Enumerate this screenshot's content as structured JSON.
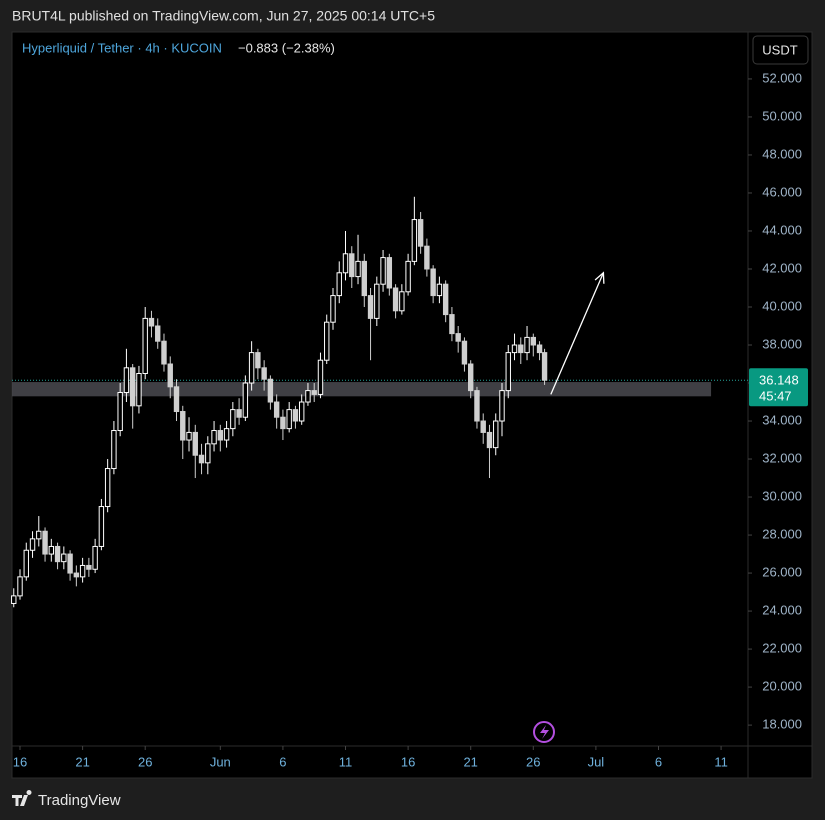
{
  "header": "BRUT4L published on TradingView.com, Jun 27, 2025 00:14 UTC+5",
  "footer": "TradingView",
  "chart_data": {
    "type": "candlestick",
    "symbol": "Hyperliquid / Tether · 4h · KUCOIN",
    "change_label": "−0.883 (−2.38%)",
    "currency": "USDT",
    "countdown": "45:47",
    "up_color": "#ffffff",
    "down_color": "#cfcfcf",
    "xlim": [
      15.36,
      74.15
    ],
    "xticks": [
      {
        "value": 16,
        "label": "16"
      },
      {
        "value": 21,
        "label": "21"
      },
      {
        "value": 26,
        "label": "26"
      },
      {
        "value": 32,
        "label": "Jun"
      },
      {
        "value": 37,
        "label": "6"
      },
      {
        "value": 42,
        "label": "11"
      },
      {
        "value": 47,
        "label": "16"
      },
      {
        "value": 52,
        "label": "21"
      },
      {
        "value": 57,
        "label": "26"
      },
      {
        "value": 62,
        "label": "Jul"
      },
      {
        "value": 67,
        "label": "6"
      },
      {
        "value": 72,
        "label": "11"
      }
    ],
    "ylim": [
      16.9,
      54.47
    ],
    "yticks": [
      {
        "value": 18,
        "label": "18.000"
      },
      {
        "value": 20,
        "label": "20.000"
      },
      {
        "value": 22,
        "label": "22.000"
      },
      {
        "value": 24,
        "label": "24.000"
      },
      {
        "value": 26,
        "label": "26.000"
      },
      {
        "value": 28,
        "label": "28.000"
      },
      {
        "value": 30,
        "label": "30.000"
      },
      {
        "value": 32,
        "label": "32.000"
      },
      {
        "value": 34,
        "label": "34.000"
      },
      {
        "value": 36,
        "label": "36.000"
      },
      {
        "value": 38,
        "label": "38.000"
      },
      {
        "value": 40,
        "label": "40.000"
      },
      {
        "value": 42,
        "label": "42.000"
      },
      {
        "value": 44,
        "label": "44.000"
      },
      {
        "value": 46,
        "label": "46.000"
      },
      {
        "value": 48,
        "label": "48.000"
      },
      {
        "value": 50,
        "label": "50.000"
      },
      {
        "value": 52,
        "label": "52.000"
      }
    ],
    "x": [
      15.5,
      16,
      16.5,
      17,
      17.5,
      18,
      18.5,
      19,
      19.5,
      20,
      20.5,
      21,
      21.5,
      22,
      22.5,
      23,
      23.5,
      24,
      24.5,
      25,
      25.5,
      26,
      26.5,
      27,
      27.5,
      28,
      28.5,
      29,
      29.5,
      30,
      30.5,
      31,
      31.5,
      32,
      32.5,
      33,
      33.5,
      34,
      34.5,
      35,
      35.5,
      36,
      36.5,
      37,
      37.5,
      38,
      38.5,
      39,
      39.5,
      40,
      40.5,
      41,
      41.5,
      42,
      42.5,
      43,
      43.5,
      44,
      44.5,
      45,
      45.5,
      46,
      46.5,
      47,
      47.5,
      48,
      48.5,
      49,
      49.5,
      50,
      50.5,
      51,
      51.5,
      52,
      52.5,
      53,
      53.5,
      54,
      54.5,
      55,
      55.5,
      56,
      56.5,
      57,
      57.5,
      57.9
    ],
    "open": [
      24.4,
      24.8,
      25.8,
      27.2,
      27.8,
      28.2,
      27.0,
      27.4,
      26.6,
      27.0,
      26.0,
      25.8,
      26.4,
      26.2,
      27.4,
      29.5,
      31.5,
      33.5,
      35.5,
      36.8,
      34.8,
      36.5,
      39.4,
      39.0,
      38.2,
      37.0,
      35.8,
      34.5,
      33.0,
      33.4,
      32.2,
      31.8,
      32.8,
      33.5,
      33.0,
      33.6,
      34.6,
      34.2,
      36.0,
      37.6,
      36.8,
      36.2,
      35.0,
      34.2,
      33.6,
      34.6,
      34.0,
      35.0,
      35.6,
      35.4,
      37.2,
      39.2,
      40.6,
      41.8,
      42.8,
      41.6,
      42.4,
      40.6,
      39.4,
      41.2,
      42.6,
      41.0,
      39.8,
      40.8,
      42.4,
      44.6,
      43.2,
      42.0,
      40.6,
      41.2,
      39.6,
      38.6,
      38.2,
      37.0,
      35.6,
      34.0,
      33.4,
      32.6,
      34.0,
      35.6,
      37.6,
      38.0,
      37.6,
      38.4,
      38.0,
      37.6
    ],
    "high": [
      25.2,
      26.2,
      27.6,
      28.2,
      29.0,
      28.4,
      27.8,
      27.6,
      27.4,
      27.2,
      26.4,
      26.8,
      26.8,
      27.8,
      29.9,
      32.0,
      34.0,
      36.0,
      37.8,
      37.0,
      36.9,
      40.0,
      39.8,
      39.4,
      38.6,
      37.4,
      36.2,
      34.8,
      34.2,
      33.8,
      32.8,
      33.2,
      34.0,
      33.8,
      34.0,
      35.0,
      35.2,
      36.4,
      38.2,
      37.8,
      37.2,
      36.4,
      35.4,
      34.6,
      35.0,
      34.8,
      35.4,
      36.0,
      36.0,
      37.6,
      39.6,
      41.0,
      42.4,
      44.0,
      43.2,
      43.8,
      42.8,
      41.0,
      41.6,
      43.0,
      42.8,
      41.2,
      41.2,
      42.8,
      45.8,
      45.0,
      43.6,
      42.2,
      41.6,
      41.4,
      40.0,
      39.0,
      38.4,
      37.2,
      35.8,
      34.4,
      33.8,
      34.4,
      36.0,
      38.0,
      38.6,
      38.4,
      39.0,
      38.6,
      38.2,
      37.8
    ],
    "low": [
      24.2,
      24.6,
      25.6,
      26.8,
      27.4,
      26.6,
      26.6,
      26.2,
      26.2,
      25.6,
      25.3,
      25.5,
      25.8,
      26.0,
      27.2,
      29.2,
      31.2,
      33.2,
      35.0,
      33.6,
      34.4,
      36.2,
      38.4,
      37.8,
      36.6,
      35.2,
      34.0,
      32.0,
      32.4,
      31.0,
      31.2,
      31.2,
      32.4,
      32.4,
      32.6,
      33.2,
      33.8,
      34.0,
      35.6,
      36.2,
      35.6,
      34.6,
      33.6,
      33.0,
      33.4,
      33.6,
      33.8,
      34.8,
      35.0,
      35.2,
      37.0,
      38.8,
      40.2,
      41.4,
      41.0,
      41.2,
      40.0,
      37.2,
      39.0,
      40.8,
      40.6,
      39.4,
      39.6,
      40.6,
      42.2,
      42.8,
      41.6,
      40.2,
      40.2,
      39.2,
      38.2,
      37.6,
      36.6,
      35.2,
      33.6,
      32.8,
      31.0,
      32.2,
      33.2,
      35.2,
      37.2,
      37.0,
      37.2,
      37.4,
      37.2,
      35.9
    ],
    "close": [
      24.8,
      25.8,
      27.2,
      27.8,
      28.2,
      27.0,
      27.4,
      26.6,
      27.0,
      26.0,
      25.8,
      26.4,
      26.2,
      27.4,
      29.5,
      31.5,
      33.5,
      35.5,
      36.8,
      34.8,
      36.5,
      39.4,
      39.0,
      38.2,
      37.0,
      35.8,
      34.5,
      33.0,
      33.4,
      32.2,
      31.8,
      32.8,
      33.5,
      33.0,
      33.6,
      34.6,
      34.2,
      36.0,
      37.6,
      36.8,
      36.2,
      35.0,
      34.2,
      33.6,
      34.6,
      34.0,
      35.0,
      35.6,
      35.4,
      37.2,
      39.2,
      40.6,
      41.8,
      42.8,
      41.6,
      42.4,
      40.6,
      39.4,
      41.2,
      42.6,
      41.0,
      39.8,
      40.8,
      42.4,
      44.6,
      43.2,
      42.0,
      40.6,
      41.2,
      39.6,
      38.6,
      38.2,
      37.0,
      35.6,
      34.0,
      33.4,
      32.6,
      34.0,
      35.6,
      37.6,
      38.0,
      37.6,
      38.4,
      38.0,
      37.6,
      36.148
    ],
    "support_zone": {
      "low": 35.3,
      "high": 36.05,
      "end": 71.2
    },
    "arrow": {
      "x": [
        58.4,
        62.6
      ],
      "y": [
        35.4,
        41.8
      ]
    }
  }
}
